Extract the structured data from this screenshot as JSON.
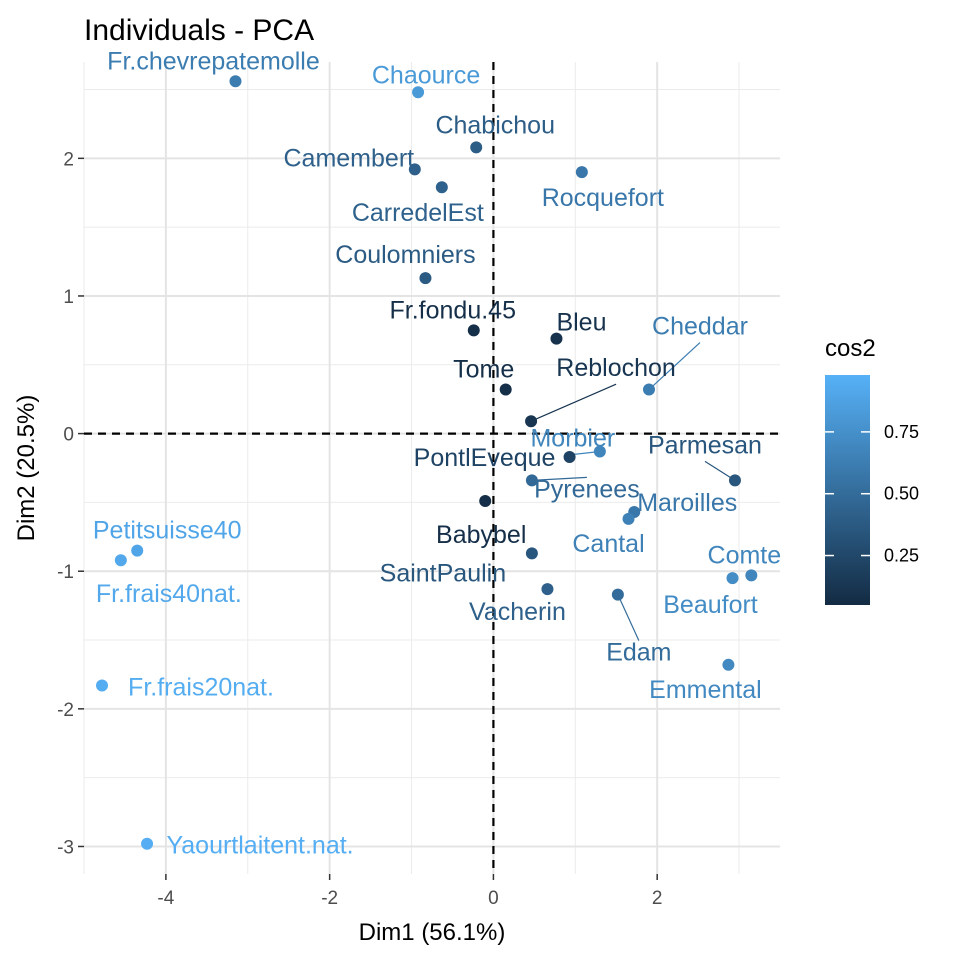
{
  "chart_data": {
    "type": "scatter",
    "title": "Individuals - PCA",
    "xlabel": "Dim1 (56.1%)",
    "ylabel": "Dim2 (20.5%)",
    "xlim": [
      -5,
      3.5
    ],
    "ylim": [
      -3.2,
      2.7
    ],
    "x_ticks": [
      -4,
      -2,
      0,
      2
    ],
    "x_tick_labels": [
      "-4",
      "-2",
      "0",
      "2"
    ],
    "y_ticks": [
      -3,
      -2,
      -1,
      0,
      1,
      2
    ],
    "y_tick_labels": [
      "-3",
      "-2",
      "-1",
      "0",
      "1",
      "2"
    ],
    "grid": true,
    "reference_lines": {
      "x": 0,
      "y": 0,
      "style": "dashed"
    },
    "color_scale": {
      "title": "cos2",
      "low_color": "#132B43",
      "high_color": "#56B1F7",
      "range": [
        0.05,
        0.98
      ],
      "ticks": [
        0.25,
        0.5,
        0.75
      ],
      "tick_labels": [
        "0.25",
        "0.50",
        "0.75"
      ]
    },
    "legend_placement": "right",
    "points": [
      {
        "name": "Fr.chevrepatemolle",
        "x": -3.15,
        "y": 2.56,
        "cos2": 0.62
      },
      {
        "name": "Chaource",
        "x": -0.92,
        "y": 2.48,
        "cos2": 0.82
      },
      {
        "name": "Chabichou",
        "x": -0.21,
        "y": 2.08,
        "cos2": 0.4
      },
      {
        "name": "Camembert",
        "x": -0.96,
        "y": 1.92,
        "cos2": 0.42
      },
      {
        "name": "CarredelEst",
        "x": -0.63,
        "y": 1.79,
        "cos2": 0.43
      },
      {
        "name": "Rocquefort",
        "x": 1.08,
        "y": 1.9,
        "cos2": 0.58
      },
      {
        "name": "Coulomniers",
        "x": -0.83,
        "y": 1.13,
        "cos2": 0.38
      },
      {
        "name": "Fr.fondu.45",
        "x": -0.24,
        "y": 0.75,
        "cos2": 0.08
      },
      {
        "name": "Bleu",
        "x": 0.77,
        "y": 0.69,
        "cos2": 0.1
      },
      {
        "name": "Cheddar",
        "x": 1.9,
        "y": 0.32,
        "cos2": 0.62
      },
      {
        "name": "Tome",
        "x": 0.15,
        "y": 0.32,
        "cos2": 0.08
      },
      {
        "name": "Reblochon",
        "x": 0.46,
        "y": 0.09,
        "cos2": 0.12
      },
      {
        "name": "Morbier",
        "x": 1.3,
        "y": -0.13,
        "cos2": 0.68
      },
      {
        "name": "PontlEveque",
        "x": 0.93,
        "y": -0.17,
        "cos2": 0.22
      },
      {
        "name": "Parmesan",
        "x": 2.95,
        "y": -0.34,
        "cos2": 0.35
      },
      {
        "name": "Pyrenees",
        "x": 0.47,
        "y": -0.34,
        "cos2": 0.48
      },
      {
        "name": "Babybel",
        "x": -0.1,
        "y": -0.49,
        "cos2": 0.08
      },
      {
        "name": "Maroilles",
        "x": 1.72,
        "y": -0.57,
        "cos2": 0.58
      },
      {
        "name": "Cantal",
        "x": 1.65,
        "y": -0.62,
        "cos2": 0.65
      },
      {
        "name": "Petitsuisse40",
        "x": -4.35,
        "y": -0.85,
        "cos2": 0.9
      },
      {
        "name": "SaintPaulin",
        "x": 0.47,
        "y": -0.87,
        "cos2": 0.35
      },
      {
        "name": "Fr.frais40nat.",
        "x": -4.55,
        "y": -0.92,
        "cos2": 0.92
      },
      {
        "name": "Comte",
        "x": 3.15,
        "y": -1.03,
        "cos2": 0.68
      },
      {
        "name": "Beaufort",
        "x": 2.92,
        "y": -1.05,
        "cos2": 0.72
      },
      {
        "name": "Vacherin",
        "x": 0.66,
        "y": -1.13,
        "cos2": 0.42
      },
      {
        "name": "Edam",
        "x": 1.52,
        "y": -1.17,
        "cos2": 0.5
      },
      {
        "name": "Emmental",
        "x": 2.87,
        "y": -1.68,
        "cos2": 0.7
      },
      {
        "name": "Fr.frais20nat.",
        "x": -4.78,
        "y": -1.83,
        "cos2": 0.95
      },
      {
        "name": "Yaourtlaitent.nat.",
        "x": -4.23,
        "y": -2.98,
        "cos2": 0.96
      }
    ]
  }
}
